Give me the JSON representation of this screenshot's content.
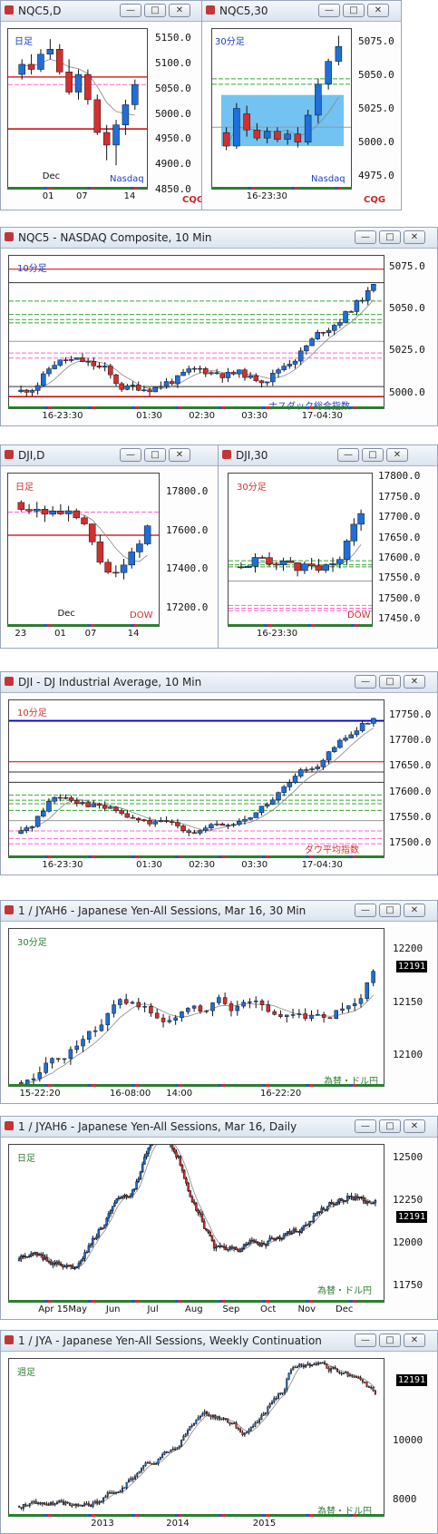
{
  "panels": {
    "p1": {
      "title": "NQC5,D",
      "tag": "日足",
      "tag2": "Nasdaq",
      "ylabels": [
        "5150.0",
        "5100.0",
        "5050.0",
        "5000.0",
        "4950.0",
        "4900.0",
        "4850.0"
      ],
      "xlabels": [
        "Dec",
        "01",
        "07",
        "14"
      ]
    },
    "p2": {
      "title": "NQC5,30",
      "tag": "30分足",
      "tag2": "Nasdaq",
      "ylabels": [
        "5075.0",
        "5050.0",
        "5025.0",
        "5000.0",
        "4975.0"
      ],
      "xlabels": [
        "16-23:30"
      ]
    },
    "p3": {
      "title": "NQC5 - NASDAQ Composite, 10 Min",
      "tag": "10分足",
      "tag2": "ナスダック総合指数",
      "ylabels": [
        "5075.0",
        "5050.0",
        "5025.0",
        "5000.0"
      ],
      "xlabels": [
        "16-23:30",
        "01:30",
        "02:30",
        "03:30",
        "17-04:30"
      ]
    },
    "p4": {
      "title": "DJI,D",
      "tag": "日足",
      "tag2": "DOW",
      "ylabels": [
        "17800.0",
        "17600.0",
        "17400.0",
        "17200.0"
      ],
      "xlabels": [
        "23",
        "01",
        "07",
        "14",
        "Dec"
      ]
    },
    "p5": {
      "title": "DJI,30",
      "tag": "30分足",
      "tag2": "DOW",
      "ylabels": [
        "17800.0",
        "17750.0",
        "17700.0",
        "17650.0",
        "17600.0",
        "17550.0",
        "17500.0",
        "17450.0"
      ],
      "xlabels": [
        "16-23:30"
      ]
    },
    "p6": {
      "title": "DJI - DJ Industrial Average, 10 Min",
      "tag": "10分足",
      "tag2": "ダウ平均指数",
      "ylabels": [
        "17750.0",
        "17700.0",
        "17650.0",
        "17600.0",
        "17550.0",
        "17500.0"
      ],
      "xlabels": [
        "16-23:30",
        "01:30",
        "02:30",
        "03:30",
        "17-04:30"
      ]
    },
    "p7": {
      "title": "1 / JYAH6 - Japanese Yen-All Sessions, Mar 16, 30 Min",
      "tag": "30分足",
      "tag2": "為替・ドル円",
      "ylabels": [
        "12200",
        "12150",
        "12100"
      ],
      "price": "12191",
      "xlabels": [
        "15-22:20",
        "16-08:00",
        "14:00",
        "16-22:20"
      ]
    },
    "p8": {
      "title": "1 / JYAH6 - Japanese Yen-All Sessions, Mar 16, Daily",
      "tag": "日足",
      "tag2": "為替・ドル円",
      "ylabels": [
        "12500",
        "12250",
        "12000",
        "11750"
      ],
      "price": "12191",
      "xlabels": [
        "Apr 15",
        "May",
        "Jun",
        "Jul",
        "Aug",
        "Sep",
        "Oct",
        "Nov",
        "Dec"
      ]
    },
    "p9": {
      "title": "1 / JYA - Japanese Yen-All Sessions, Weekly Continuation",
      "tag": "週足",
      "tag2": "為替・ドル円",
      "ylabels": [
        "10000",
        "8000"
      ],
      "price": "12191",
      "xlabels": [
        "2013",
        "2014",
        "2015"
      ]
    }
  },
  "logo": {
    "text": "CQG",
    "mark": "▪"
  },
  "buttons": {
    "min": "—",
    "max": "□",
    "close": "✕"
  },
  "colors": {
    "up": "#1e6fd9",
    "down": "#d32f2f",
    "band": "#59b9ee",
    "title_blue": "#1a3ec2",
    "title_red": "#d32f2f"
  },
  "chart_data": [
    {
      "type": "candlestick",
      "title": "NQC5,D",
      "ylim": [
        4850,
        5170
      ],
      "ohlc": [
        [
          5080,
          5110,
          5070,
          5100
        ],
        [
          5100,
          5120,
          5080,
          5090
        ],
        [
          5090,
          5130,
          5085,
          5120
        ],
        [
          5120,
          5150,
          5110,
          5130
        ],
        [
          5130,
          5140,
          5080,
          5085
        ],
        [
          5085,
          5110,
          5040,
          5045
        ],
        [
          5045,
          5090,
          5030,
          5080
        ],
        [
          5080,
          5090,
          5020,
          5030
        ],
        [
          5030,
          5040,
          4960,
          4965
        ],
        [
          4965,
          4980,
          4910,
          4940
        ],
        [
          4940,
          4990,
          4900,
          4980
        ],
        [
          4980,
          5030,
          4960,
          5020
        ],
        [
          5020,
          5070,
          5010,
          5060
        ]
      ]
    },
    {
      "type": "candlestick",
      "title": "NQC5,30",
      "ylim": [
        4965,
        5085
      ],
      "ohlc": [
        [
          5008,
          5012,
          4995,
          4998
        ],
        [
          4998,
          5030,
          4996,
          5026
        ],
        [
          5022,
          5028,
          5005,
          5010
        ],
        [
          5010,
          5015,
          5002,
          5004
        ],
        [
          5004,
          5012,
          5000,
          5009
        ],
        [
          5009,
          5012,
          5001,
          5003
        ],
        [
          5003,
          5010,
          4999,
          5007
        ],
        [
          5007,
          5012,
          4997,
          5001
        ],
        [
          5001,
          5025,
          4999,
          5021
        ],
        [
          5021,
          5048,
          5015,
          5044
        ],
        [
          5044,
          5063,
          5040,
          5061
        ],
        [
          5061,
          5080,
          5058,
          5072
        ]
      ]
    },
    {
      "type": "candlestick",
      "title": "NQC5 - NASDAQ Composite, 10 Min",
      "ylim": [
        4990,
        5082
      ]
    },
    {
      "type": "candlestick",
      "title": "DJI,D",
      "ylim": [
        17100,
        17900
      ]
    },
    {
      "type": "candlestick",
      "title": "DJI,30",
      "ylim": [
        17430,
        17810
      ]
    },
    {
      "type": "candlestick",
      "title": "DJI - DJ Industrial Average, 10 Min",
      "ylim": [
        17470,
        17780
      ]
    },
    {
      "type": "candlestick",
      "title": "1 / JYAH6 - Japanese Yen-All Sessions, Mar 16, 30 Min",
      "ylim": [
        12070,
        12220
      ]
    },
    {
      "type": "candlestick",
      "title": "1 / JYAH6 - Japanese Yen-All Sessions, Mar 16, Daily",
      "ylim": [
        11650,
        12580
      ]
    },
    {
      "type": "candlestick",
      "title": "1 / JYA - Japanese Yen-All Sessions, Weekly Continuation",
      "ylim": [
        7400,
        12800
      ]
    }
  ]
}
